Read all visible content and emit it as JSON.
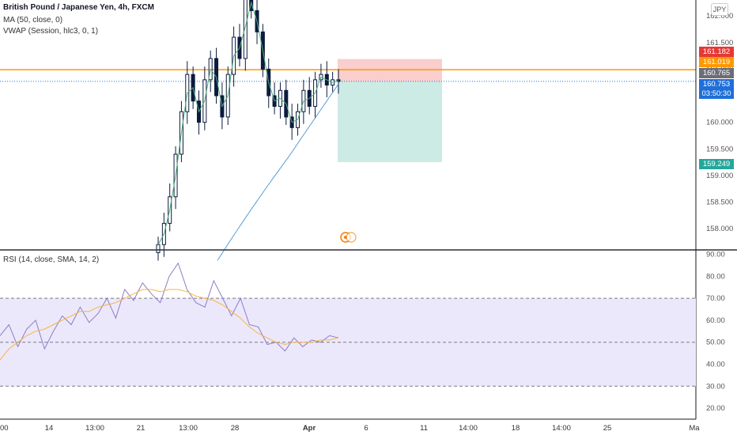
{
  "legend": {
    "title": "British Pound / Japanese Yen, 4h, FXCM",
    "ma": "MA (50, close, 0)",
    "vwap": "VWAP (Session, hlc3, 0, 1)",
    "rsi": "RSI (14, close, SMA, 14, 2)"
  },
  "currency": "JPY",
  "price_boxes": {
    "orange": "161.182",
    "orange2": "161.019",
    "gray": "160.765",
    "blue": "160.753",
    "blue_timer": "03:50:30",
    "green": "159.249"
  },
  "colors": {
    "candle": "#0d1b3e",
    "ma": "#5b9bd5",
    "vwap": "#4caf7a",
    "horizontal": "#ff9800",
    "stop_zone": "#f8c6c3",
    "target_zone": "#bfe6df",
    "rsi_line": "#8e7cc3",
    "rsi_ma": "#f5b642",
    "rsi_band": "#ece8fb"
  },
  "chart_data": [
    {
      "type": "candlestick",
      "title": "British Pound / Japanese Yen, 4h, FXCM",
      "ylim": [
        157.6,
        162.3
      ],
      "y_ticks": [
        "162.000",
        "161.500",
        "161.000",
        "160.500",
        "160.000",
        "159.500",
        "159.000",
        "158.500",
        "158.000"
      ],
      "x_tick_labels": [
        "00",
        "14",
        "13:00",
        "21",
        "13:00",
        "28",
        "Apr",
        "6",
        "11",
        "14:00",
        "18",
        "14:00",
        "25",
        "Ma"
      ],
      "horizontal_line": 160.99,
      "position": {
        "entry": 160.77,
        "stop": 161.19,
        "target": 159.25
      },
      "close_series": [
        157.7,
        158.1,
        158.6,
        159.4,
        160.2,
        160.9,
        160.4,
        160.0,
        160.8,
        161.2,
        160.5,
        160.1,
        160.9,
        161.6,
        161.2,
        162.4,
        162.1,
        161.7,
        161.0,
        160.5,
        160.3,
        160.6,
        160.1,
        159.9,
        160.2,
        160.6,
        160.3,
        160.8,
        160.9,
        160.7,
        160.8,
        160.77
      ]
    },
    {
      "type": "line",
      "title": "RSI (14, close, SMA, 14, 2)",
      "ylim": [
        15,
        92
      ],
      "y_ticks": [
        "90.00",
        "80.00",
        "70.00",
        "60.00",
        "50.00",
        "40.00",
        "30.00",
        "20.00"
      ],
      "bands": {
        "upper": 70,
        "middle": 50,
        "lower": 30
      },
      "series": [
        {
          "values": [
            53,
            58,
            48,
            56,
            60,
            47,
            55,
            62,
            58,
            66,
            59,
            63,
            70,
            61,
            74,
            69,
            77,
            72,
            68,
            80,
            86,
            74,
            68,
            66,
            78,
            70,
            62,
            70,
            58,
            57,
            49,
            50,
            46,
            52,
            48,
            51,
            50,
            53,
            52
          ]
        },
        {
          "values": [
            42,
            47,
            50,
            53,
            55,
            56,
            58,
            60,
            62,
            64,
            64,
            66,
            67,
            68,
            70,
            72,
            74,
            74,
            73,
            74,
            74,
            73,
            71,
            70,
            69,
            67,
            64,
            61,
            57,
            54,
            52,
            50,
            49,
            50,
            50,
            50,
            51,
            51,
            52
          ]
        }
      ]
    }
  ]
}
